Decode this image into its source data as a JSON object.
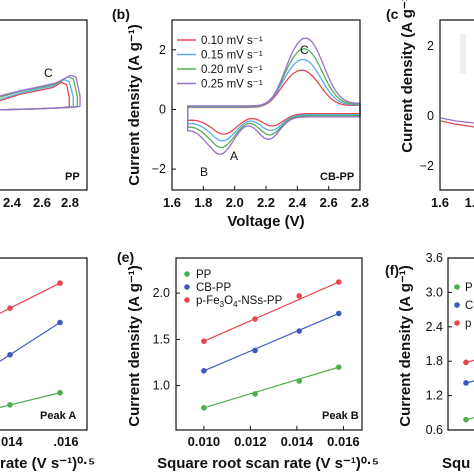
{
  "colors": {
    "s010": "#e8474f",
    "s015": "#5aaee8",
    "s020": "#52b052",
    "s025": "#9a6fcf",
    "pp": "#4cae4c",
    "cbpp": "#3d5bbf",
    "fe": "#e8474f"
  },
  "chart_data": [
    {
      "panel": "a",
      "type": "line",
      "title": "",
      "xlabel": "",
      "ylabel": "",
      "xlim": [
        1.6,
        2.8
      ],
      "ylim": [
        -3,
        3
      ],
      "xtick_labels": [
        "2.4",
        "2.6",
        "2.8"
      ],
      "annotations": {
        "C": "C",
        "sample": "PP"
      },
      "series": [
        {
          "color_key": "s010",
          "x": [
            2.2,
            2.35,
            2.5,
            2.6,
            2.66,
            2.7,
            2.72
          ],
          "y": [
            0.15,
            0.38,
            0.52,
            0.62,
            0.8,
            0.72,
            0.25
          ]
        },
        {
          "color_key": "s015",
          "x": [
            2.2,
            2.35,
            2.5,
            2.6,
            2.68,
            2.72,
            2.75
          ],
          "y": [
            0.2,
            0.42,
            0.58,
            0.68,
            0.9,
            0.82,
            0.28
          ]
        },
        {
          "color_key": "s020",
          "x": [
            2.2,
            2.35,
            2.5,
            2.62,
            2.71,
            2.75,
            2.78
          ],
          "y": [
            0.28,
            0.48,
            0.62,
            0.75,
            1.0,
            0.92,
            0.3
          ]
        },
        {
          "color_key": "s025",
          "x": [
            2.2,
            2.35,
            2.5,
            2.62,
            2.73,
            2.77,
            2.8
          ],
          "y": [
            0.32,
            0.5,
            0.65,
            0.78,
            1.05,
            0.98,
            0.32
          ]
        }
      ]
    },
    {
      "panel": "b",
      "panel_label": "(b)",
      "type": "line",
      "title": "",
      "xlabel": "Voltage (V)",
      "ylabel": "Current density (A g⁻¹)",
      "xlim": [
        1.6,
        2.8
      ],
      "ylim": [
        -2.7,
        3
      ],
      "xticks": [
        1.6,
        1.8,
        2.0,
        2.2,
        2.4,
        2.6,
        2.8
      ],
      "xtick_labels": [
        "1.6",
        "1.8",
        "2.0",
        "2.2",
        "2.4",
        "2.6",
        "2.8"
      ],
      "yticks": [
        -2,
        0,
        2
      ],
      "ytick_labels": [
        "−2",
        "0",
        "2"
      ],
      "legend": {
        "placement": "top-left",
        "entries": [
          {
            "color_key": "s010",
            "label": "0.10 mV s⁻¹"
          },
          {
            "color_key": "s015",
            "label": "0.15 mV s⁻¹"
          },
          {
            "color_key": "s020",
            "label": "0.20 mV s⁻¹"
          },
          {
            "color_key": "s025",
            "label": "0.25 mV s⁻¹"
          }
        ]
      },
      "annotations": {
        "A": "A",
        "B": "B",
        "C": "C",
        "sample": "CB-PP"
      },
      "series": [
        {
          "color_key": "s010",
          "scale": 0.55,
          "shift": 0.0
        },
        {
          "color_key": "s015",
          "scale": 0.7,
          "shift": 0.008
        },
        {
          "color_key": "s020",
          "scale": 0.85,
          "shift": 0.016
        },
        {
          "color_key": "s025",
          "scale": 1.0,
          "shift": 0.024
        }
      ]
    },
    {
      "panel": "c",
      "panel_label": "(c",
      "type": "line",
      "title": "",
      "xlabel": "",
      "ylabel": "",
      "xlim": [
        1.6,
        2.8
      ],
      "ylim": [
        -2.7,
        3
      ],
      "xtick_labels": [
        "1.6",
        "1."
      ],
      "ytick_labels": [
        "2",
        "0",
        "−2"
      ]
    },
    {
      "panel": "d",
      "type": "line",
      "title": "",
      "xlabel": "rate (V s⁻¹)⁰·⁵",
      "ylabel": "",
      "xlim": [
        0.009,
        0.017
      ],
      "xtick_labels": [
        ".014",
        ".016"
      ],
      "annotations": {
        "peak": "Peak A"
      },
      "series": [
        {
          "color_key": "fe",
          "x": [
            0.0141,
            0.0158
          ],
          "y": [
            1.7,
            2.05
          ]
        },
        {
          "color_key": "cbpp",
          "x": [
            0.0141,
            0.0158
          ],
          "y": [
            1.05,
            1.5
          ]
        },
        {
          "color_key": "pp",
          "x": [
            0.0141,
            0.0158
          ],
          "y": [
            0.35,
            0.52
          ]
        }
      ]
    },
    {
      "panel": "e",
      "panel_label": "(e)",
      "type": "line",
      "title": "",
      "xlabel": "Square root scan rate (V s⁻¹)⁰·⁵",
      "ylabel": "Current density (A g⁻¹)",
      "xlim": [
        0.0088,
        0.0168
      ],
      "ylim": [
        0.52,
        2.38
      ],
      "xticks": [
        0.01,
        0.012,
        0.014,
        0.016
      ],
      "xtick_labels": [
        "0.010",
        "0.012",
        "0.014",
        "0.016"
      ],
      "yticks": [
        1.0,
        1.5,
        2.0
      ],
      "ytick_labels": [
        "1.0",
        "1.5",
        "2.0"
      ],
      "legend": {
        "placement": "top-left",
        "entries": [
          {
            "color_key": "pp",
            "label": "PP"
          },
          {
            "color_key": "cbpp",
            "label": "CB-PP"
          },
          {
            "color_key": "fe",
            "label_parts": [
              "p-Fe",
              "3",
              "O",
              "4",
              "-NSs-PP"
            ]
          }
        ]
      },
      "annotations": {
        "peak": "Peak B"
      },
      "series": [
        {
          "name": "PP",
          "color_key": "pp",
          "x": [
            0.01,
            0.0122,
            0.0141,
            0.0158
          ],
          "y": [
            0.76,
            0.91,
            1.05,
            1.2
          ]
        },
        {
          "name": "CB-PP",
          "color_key": "cbpp",
          "x": [
            0.01,
            0.0122,
            0.0141,
            0.0158
          ],
          "y": [
            1.16,
            1.38,
            1.59,
            1.78
          ]
        },
        {
          "name": "p-Fe3O4-NSs-PP",
          "color_key": "fe",
          "x": [
            0.01,
            0.0122,
            0.0141,
            0.0158
          ],
          "y": [
            1.48,
            1.72,
            1.97,
            2.12
          ]
        }
      ]
    },
    {
      "panel": "f",
      "panel_label": "(f)",
      "type": "line",
      "title": "",
      "xlabel": "Squ",
      "ylabel": "Current density (A g⁻¹)",
      "ylim": [
        0.6,
        3.6
      ],
      "yticks": [
        0.6,
        1.2,
        1.8,
        2.4,
        3.0,
        3.6
      ],
      "ytick_labels": [
        "0.6",
        "1.2",
        "1.8",
        "2.4",
        "3.0",
        "3.6"
      ],
      "legend": {
        "placement": "top-left",
        "entries": [
          {
            "color_key": "pp",
            "label": "P"
          },
          {
            "color_key": "cbpp",
            "label": "C"
          },
          {
            "color_key": "fe",
            "label": "p"
          }
        ]
      },
      "series": [
        {
          "color_key": "fe",
          "x": [
            0.01
          ],
          "y": [
            1.78
          ]
        },
        {
          "color_key": "cbpp",
          "x": [
            0.01
          ],
          "y": [
            1.42
          ]
        },
        {
          "color_key": "pp",
          "x": [
            0.01
          ],
          "y": [
            0.78
          ]
        }
      ]
    }
  ]
}
